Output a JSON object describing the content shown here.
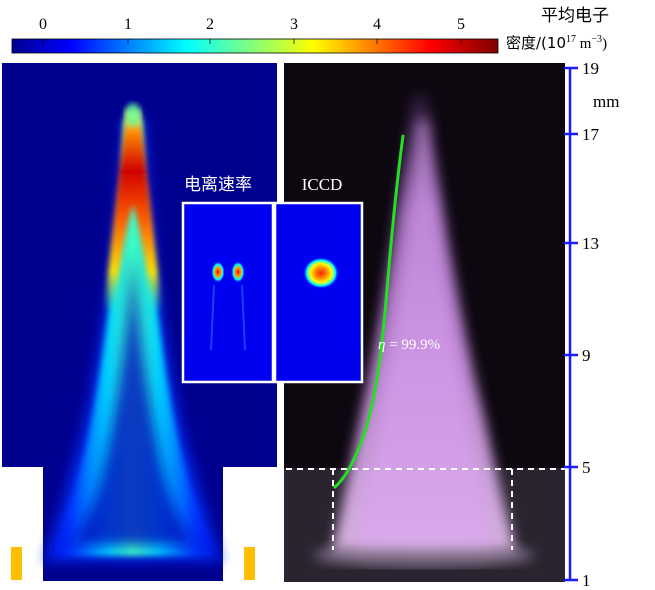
{
  "colorbar": {
    "ticks": [
      "0",
      "1",
      "2",
      "3",
      "4",
      "5"
    ],
    "label_line1": "平均电子",
    "label_line2_prefix": "密度/(10",
    "label_line2_exp": "17",
    "label_line2_unit": " m",
    "label_line2_unit_exp": "−3",
    "label_line2_suffix": ")"
  },
  "axis": {
    "ticks": [
      "19",
      "17",
      "13",
      "9",
      "5",
      "1"
    ],
    "unit": "mm",
    "color": "#1a1aff"
  },
  "insets": {
    "ionization_rate_title": "电离速率",
    "iccd_title": "ICCD"
  },
  "annotation": {
    "eta_symbol": "η",
    "eta_value": " = 99.9%"
  },
  "colors": {
    "jet_background": "#00008f",
    "plume": "#d58cf0",
    "eta_curve": "#22e022",
    "electrode": "#ffbf00"
  }
}
